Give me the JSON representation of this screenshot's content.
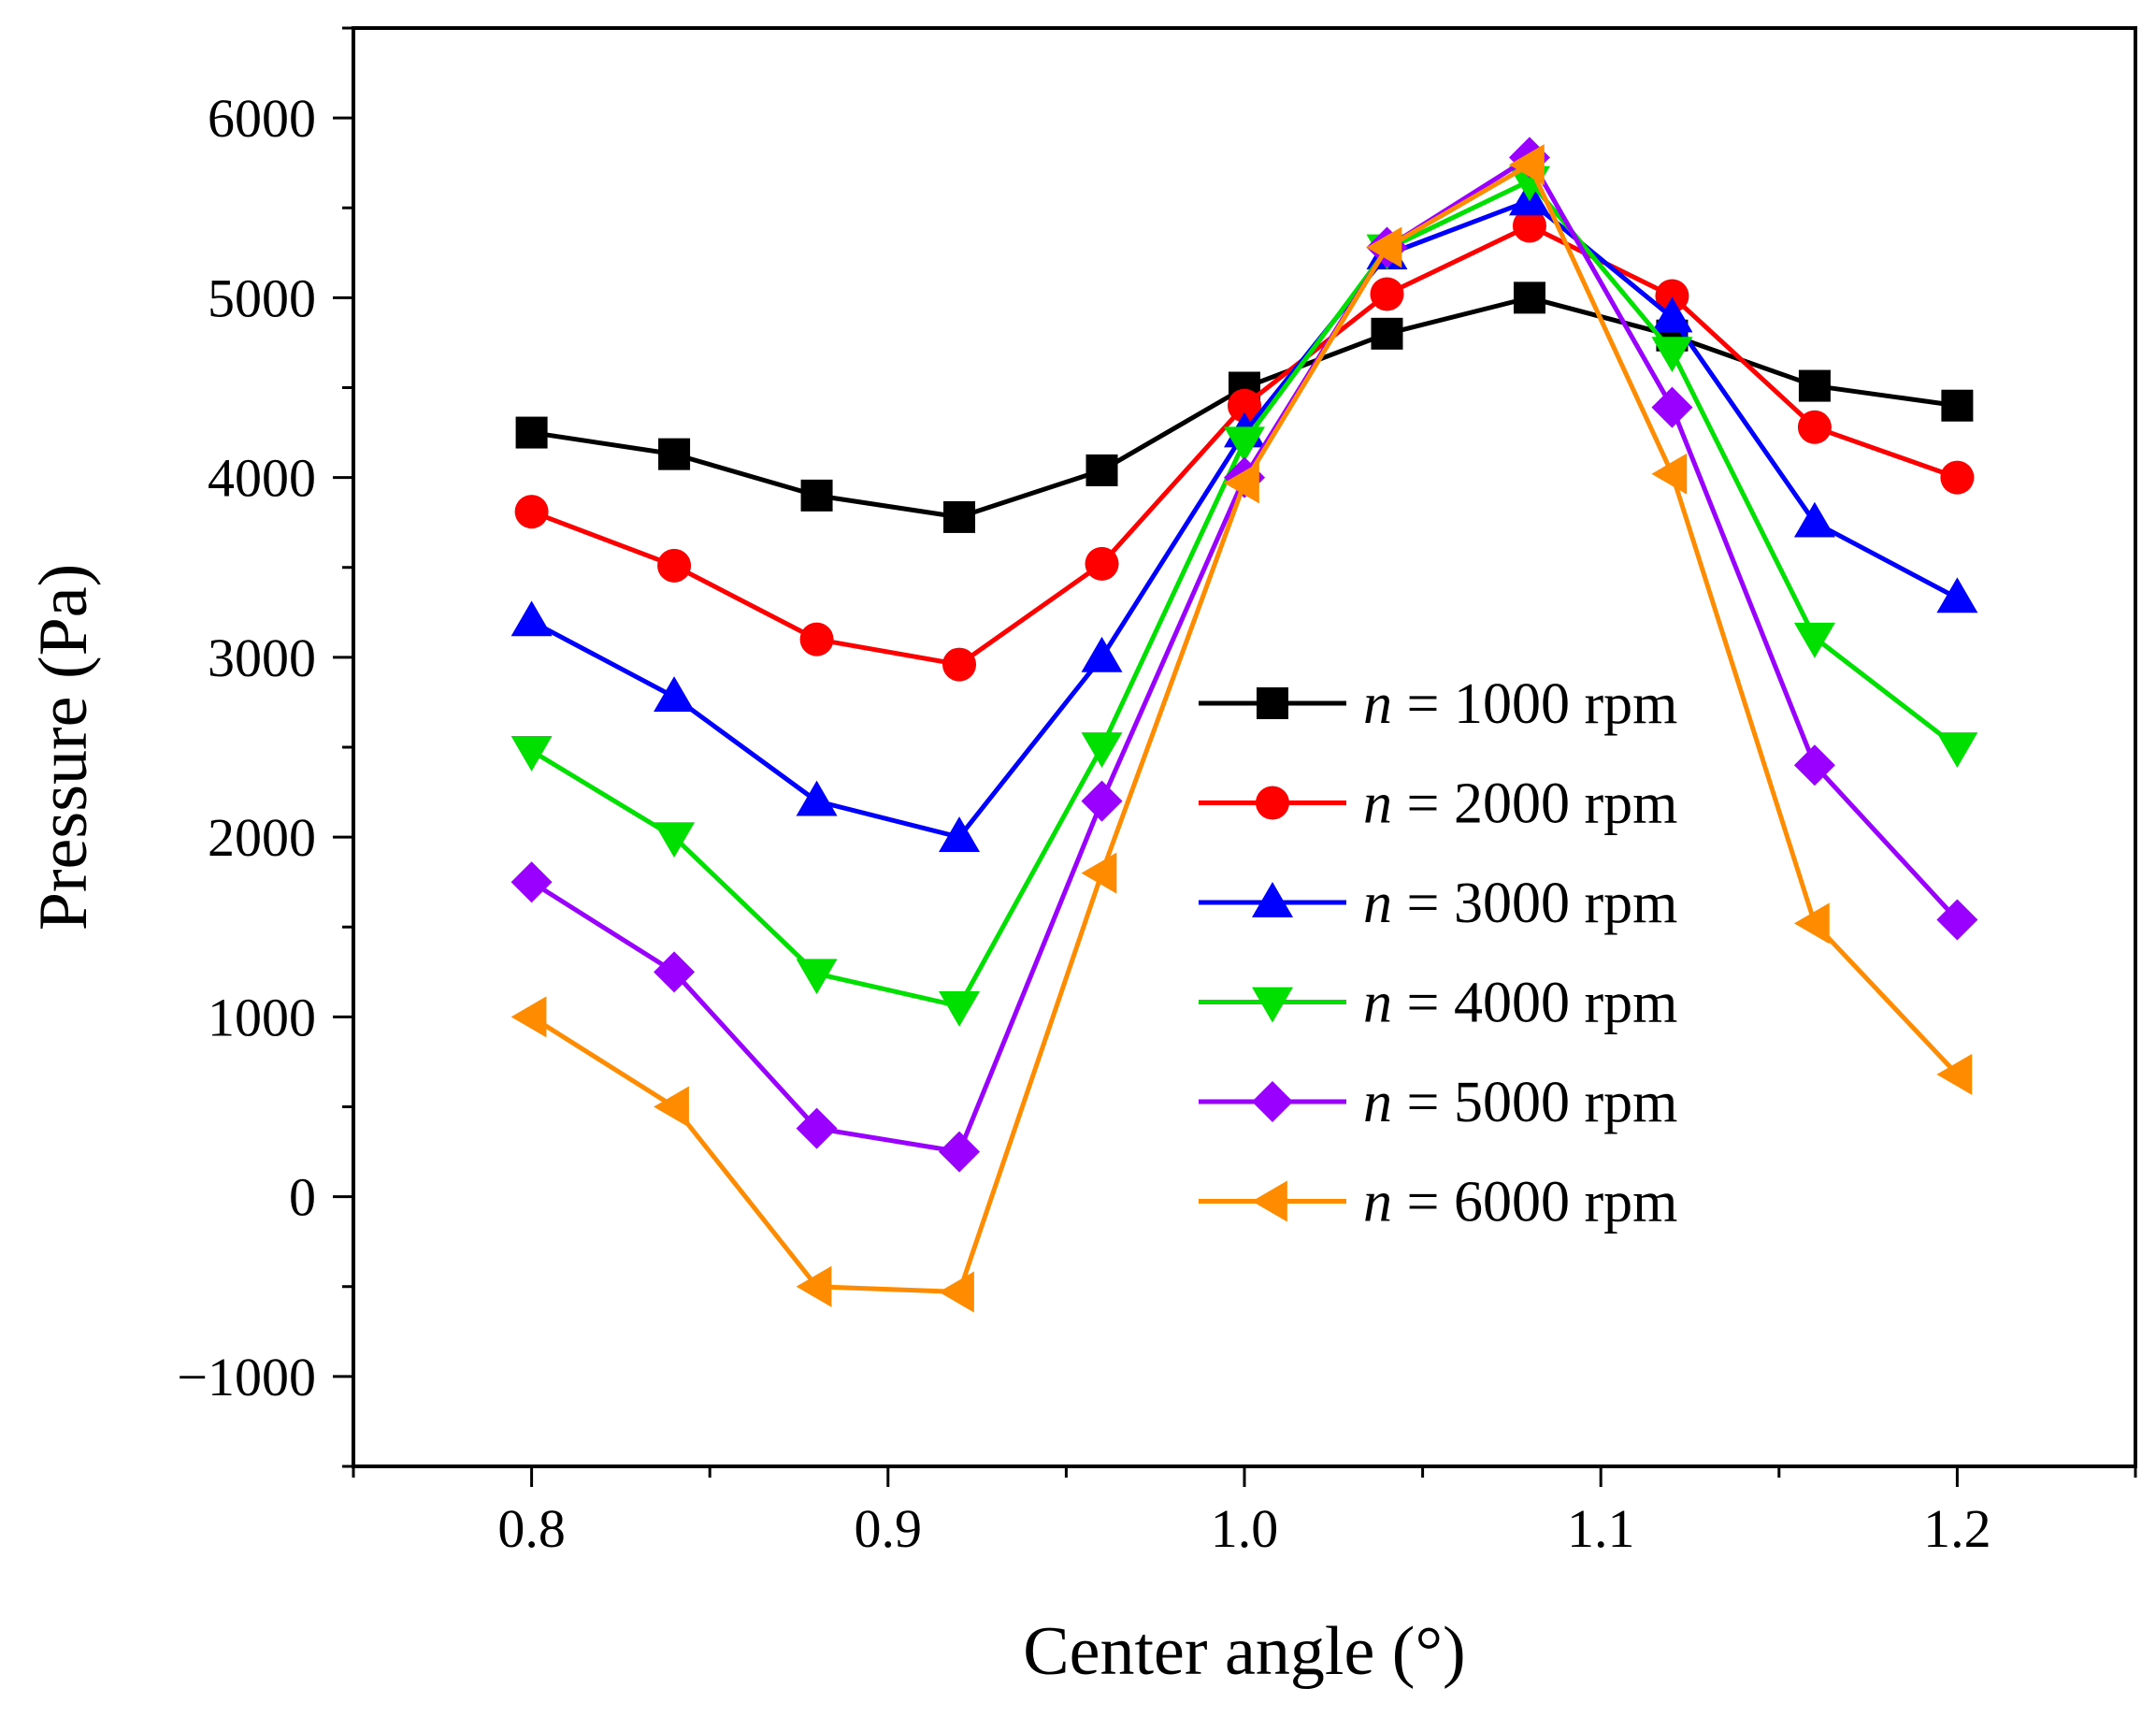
{
  "chart_data": {
    "type": "line",
    "title": "",
    "xlabel": "Center angle (°)",
    "ylabel": "Pressure (Pa)",
    "xlim": [
      0.75,
      1.25
    ],
    "ylim": [
      -1500,
      6500
    ],
    "x": [
      0.8,
      0.84,
      0.88,
      0.92,
      0.96,
      1.0,
      1.04,
      1.08,
      1.12,
      1.16,
      1.2
    ],
    "xticks": [
      0.8,
      0.9,
      1.0,
      1.1,
      1.2
    ],
    "xtick_labels": [
      "0.8",
      "0.9",
      "1.0",
      "1.1",
      "1.2"
    ],
    "yticks": [
      -1000,
      0,
      1000,
      2000,
      3000,
      4000,
      5000,
      6000
    ],
    "ytick_labels": [
      "−1000",
      "0",
      "1000",
      "2000",
      "3000",
      "4000",
      "5000",
      "6000"
    ],
    "legend_position": "center-right",
    "series": [
      {
        "name": "n = 1000 rpm",
        "prefix": "n",
        "suffix": " = 1000 rpm",
        "color": "#000000",
        "marker": "square",
        "values": [
          4250,
          4130,
          3900,
          3780,
          4040,
          4500,
          4800,
          5000,
          4790,
          4510,
          4400
        ]
      },
      {
        "name": "n = 2000 rpm",
        "prefix": "n",
        "suffix": " = 2000 rpm",
        "color": "#ff0000",
        "marker": "circle",
        "values": [
          3810,
          3510,
          3100,
          2960,
          3520,
          4400,
          5020,
          5400,
          5010,
          4280,
          4000
        ]
      },
      {
        "name": "n = 3000 rpm",
        "prefix": "n",
        "suffix": " = 3000 rpm",
        "color": "#0000ff",
        "marker": "triangle-up",
        "values": [
          3200,
          2780,
          2200,
          2000,
          3000,
          4250,
          5240,
          5540,
          4890,
          3750,
          3330
        ]
      },
      {
        "name": "n = 4000 rpm",
        "prefix": "n",
        "suffix": " = 4000 rpm",
        "color": "#00e000",
        "marker": "triangle-down",
        "values": [
          2480,
          2000,
          1240,
          1060,
          2500,
          4200,
          5270,
          5650,
          4700,
          3110,
          2500
        ]
      },
      {
        "name": "n = 5000 rpm",
        "prefix": "n",
        "suffix": " = 5000 rpm",
        "color": "#9900ff",
        "marker": "diamond",
        "values": [
          1750,
          1250,
          380,
          250,
          2200,
          4000,
          5280,
          5780,
          4390,
          2400,
          1540
        ]
      },
      {
        "name": "n = 6000 rpm",
        "prefix": "n",
        "suffix": " = 6000 rpm",
        "color": "#ff8c00",
        "marker": "triangle-left",
        "values": [
          1000,
          500,
          -500,
          -530,
          1800,
          3970,
          5280,
          5740,
          4020,
          1520,
          680
        ]
      }
    ]
  }
}
